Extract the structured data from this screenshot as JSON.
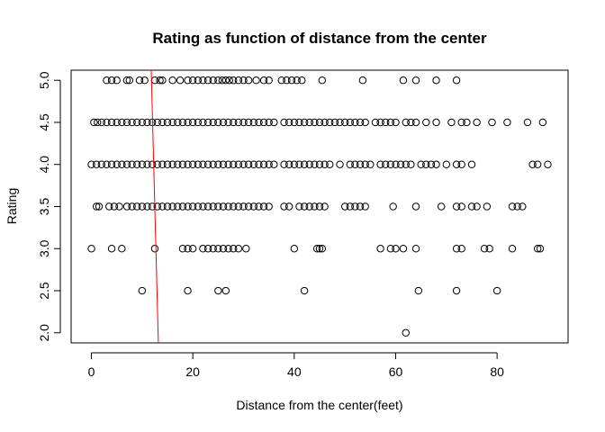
{
  "chart_data": {
    "type": "scatter",
    "title": "Rating as function of distance from the center",
    "xlabel": "Distance from the center(feet)",
    "ylabel": "Rating",
    "xlim": [
      -4,
      94
    ],
    "ylim": [
      1.88,
      5.12
    ],
    "xticks": [
      0,
      20,
      40,
      60,
      80
    ],
    "yticks": [
      2.0,
      2.5,
      3.0,
      3.5,
      4.0,
      4.5,
      5.0
    ],
    "xtick_labels": [
      "0",
      "20",
      "40",
      "60",
      "80"
    ],
    "ytick_labels": [
      "2.0",
      "2.5",
      "3.0",
      "3.5",
      "4.0",
      "4.5",
      "5.0"
    ],
    "grid": false,
    "marker": "open-circle",
    "point_color": "#000000",
    "series": [
      {
        "points": [
          [
            3,
            5.0
          ],
          [
            4,
            5.0
          ],
          [
            5,
            5.0
          ],
          [
            7,
            5.0
          ],
          [
            7.5,
            5.0
          ],
          [
            9.5,
            5.0
          ],
          [
            10.5,
            5.0
          ],
          [
            12.5,
            5.0
          ],
          [
            13.5,
            5.0
          ],
          [
            14,
            5.0
          ],
          [
            16,
            5.0
          ],
          [
            17.5,
            5.0
          ],
          [
            19,
            5.0
          ],
          [
            20,
            5.0
          ],
          [
            21,
            5.0
          ],
          [
            22,
            5.0
          ],
          [
            23,
            5.0
          ],
          [
            24,
            5.0
          ],
          [
            25,
            5.0
          ],
          [
            25.8,
            5.0
          ],
          [
            26.5,
            5.0
          ],
          [
            27.2,
            5.0
          ],
          [
            28,
            5.0
          ],
          [
            29,
            5.0
          ],
          [
            30,
            5.0
          ],
          [
            31,
            5.0
          ],
          [
            32.5,
            5.0
          ],
          [
            34,
            5.0
          ],
          [
            35,
            5.0
          ],
          [
            37.5,
            5.0
          ],
          [
            38.5,
            5.0
          ],
          [
            39.5,
            5.0
          ],
          [
            40.5,
            5.0
          ],
          [
            41.5,
            5.0
          ],
          [
            45.5,
            5.0
          ],
          [
            53.5,
            5.0
          ],
          [
            61.5,
            5.0
          ],
          [
            64,
            5.0
          ],
          [
            68,
            5.0
          ],
          [
            72,
            5.0
          ],
          [
            0.5,
            4.5
          ],
          [
            1.2,
            4.5
          ],
          [
            2,
            4.5
          ],
          [
            3,
            4.5
          ],
          [
            4,
            4.5
          ],
          [
            5,
            4.5
          ],
          [
            6,
            4.5
          ],
          [
            7,
            4.5
          ],
          [
            8,
            4.5
          ],
          [
            9,
            4.5
          ],
          [
            10,
            4.5
          ],
          [
            11,
            4.5
          ],
          [
            12,
            4.5
          ],
          [
            13,
            4.5
          ],
          [
            14,
            4.5
          ],
          [
            15,
            4.5
          ],
          [
            16,
            4.5
          ],
          [
            17,
            4.5
          ],
          [
            18,
            4.5
          ],
          [
            19,
            4.5
          ],
          [
            20,
            4.5
          ],
          [
            21,
            4.5
          ],
          [
            22,
            4.5
          ],
          [
            23,
            4.5
          ],
          [
            24,
            4.5
          ],
          [
            25,
            4.5
          ],
          [
            26,
            4.5
          ],
          [
            27,
            4.5
          ],
          [
            28,
            4.5
          ],
          [
            29,
            4.5
          ],
          [
            30,
            4.5
          ],
          [
            31,
            4.5
          ],
          [
            32,
            4.5
          ],
          [
            33,
            4.5
          ],
          [
            34,
            4.5
          ],
          [
            35,
            4.5
          ],
          [
            36,
            4.5
          ],
          [
            38,
            4.5
          ],
          [
            39,
            4.5
          ],
          [
            40,
            4.5
          ],
          [
            41,
            4.5
          ],
          [
            42,
            4.5
          ],
          [
            43,
            4.5
          ],
          [
            44,
            4.5
          ],
          [
            45,
            4.5
          ],
          [
            46,
            4.5
          ],
          [
            47,
            4.5
          ],
          [
            48,
            4.5
          ],
          [
            49,
            4.5
          ],
          [
            50,
            4.5
          ],
          [
            51,
            4.5
          ],
          [
            52,
            4.5
          ],
          [
            53,
            4.5
          ],
          [
            54,
            4.5
          ],
          [
            56,
            4.5
          ],
          [
            57,
            4.5
          ],
          [
            58,
            4.5
          ],
          [
            59,
            4.5
          ],
          [
            60,
            4.5
          ],
          [
            62,
            4.5
          ],
          [
            63,
            4.5
          ],
          [
            64,
            4.5
          ],
          [
            66,
            4.5
          ],
          [
            68,
            4.5
          ],
          [
            71,
            4.5
          ],
          [
            73,
            4.5
          ],
          [
            74,
            4.5
          ],
          [
            76,
            4.5
          ],
          [
            79,
            4.5
          ],
          [
            82,
            4.5
          ],
          [
            86,
            4.5
          ],
          [
            89,
            4.5
          ],
          [
            0,
            4.0
          ],
          [
            1,
            4.0
          ],
          [
            2,
            4.0
          ],
          [
            3,
            4.0
          ],
          [
            4,
            4.0
          ],
          [
            5,
            4.0
          ],
          [
            6,
            4.0
          ],
          [
            7,
            4.0
          ],
          [
            8,
            4.0
          ],
          [
            9,
            4.0
          ],
          [
            10,
            4.0
          ],
          [
            11,
            4.0
          ],
          [
            12,
            4.0
          ],
          [
            13,
            4.0
          ],
          [
            14,
            4.0
          ],
          [
            15,
            4.0
          ],
          [
            16,
            4.0
          ],
          [
            17,
            4.0
          ],
          [
            18,
            4.0
          ],
          [
            19,
            4.0
          ],
          [
            20,
            4.0
          ],
          [
            21,
            4.0
          ],
          [
            22,
            4.0
          ],
          [
            23,
            4.0
          ],
          [
            24,
            4.0
          ],
          [
            25,
            4.0
          ],
          [
            26,
            4.0
          ],
          [
            27,
            4.0
          ],
          [
            28,
            4.0
          ],
          [
            29,
            4.0
          ],
          [
            30,
            4.0
          ],
          [
            31,
            4.0
          ],
          [
            32,
            4.0
          ],
          [
            33,
            4.0
          ],
          [
            34,
            4.0
          ],
          [
            35,
            4.0
          ],
          [
            36,
            4.0
          ],
          [
            38,
            4.0
          ],
          [
            39,
            4.0
          ],
          [
            40,
            4.0
          ],
          [
            41,
            4.0
          ],
          [
            42,
            4.0
          ],
          [
            43,
            4.0
          ],
          [
            44,
            4.0
          ],
          [
            45,
            4.0
          ],
          [
            46,
            4.0
          ],
          [
            47,
            4.0
          ],
          [
            49,
            4.0
          ],
          [
            51,
            4.0
          ],
          [
            52,
            4.0
          ],
          [
            53,
            4.0
          ],
          [
            54,
            4.0
          ],
          [
            55,
            4.0
          ],
          [
            57,
            4.0
          ],
          [
            58,
            4.0
          ],
          [
            59,
            4.0
          ],
          [
            60,
            4.0
          ],
          [
            61,
            4.0
          ],
          [
            62,
            4.0
          ],
          [
            63,
            4.0
          ],
          [
            65,
            4.0
          ],
          [
            66,
            4.0
          ],
          [
            67,
            4.0
          ],
          [
            68,
            4.0
          ],
          [
            70,
            4.0
          ],
          [
            72,
            4.0
          ],
          [
            73,
            4.0
          ],
          [
            75,
            4.0
          ],
          [
            87,
            4.0
          ],
          [
            88,
            4.0
          ],
          [
            90,
            4.0
          ],
          [
            1,
            3.5
          ],
          [
            1.5,
            3.5
          ],
          [
            3.5,
            3.5
          ],
          [
            4.5,
            3.5
          ],
          [
            5.5,
            3.5
          ],
          [
            7,
            3.5
          ],
          [
            8,
            3.5
          ],
          [
            9,
            3.5
          ],
          [
            10,
            3.5
          ],
          [
            11,
            3.5
          ],
          [
            12,
            3.5
          ],
          [
            13,
            3.5
          ],
          [
            14,
            3.5
          ],
          [
            15,
            3.5
          ],
          [
            16,
            3.5
          ],
          [
            17,
            3.5
          ],
          [
            18,
            3.5
          ],
          [
            19,
            3.5
          ],
          [
            20,
            3.5
          ],
          [
            21,
            3.5
          ],
          [
            22,
            3.5
          ],
          [
            23,
            3.5
          ],
          [
            24,
            3.5
          ],
          [
            25,
            3.5
          ],
          [
            26,
            3.5
          ],
          [
            27,
            3.5
          ],
          [
            28,
            3.5
          ],
          [
            29,
            3.5
          ],
          [
            30,
            3.5
          ],
          [
            31,
            3.5
          ],
          [
            32,
            3.5
          ],
          [
            33,
            3.5
          ],
          [
            34,
            3.5
          ],
          [
            35,
            3.5
          ],
          [
            38,
            3.5
          ],
          [
            39,
            3.5
          ],
          [
            41,
            3.5
          ],
          [
            42,
            3.5
          ],
          [
            43,
            3.5
          ],
          [
            44,
            3.5
          ],
          [
            45,
            3.5
          ],
          [
            46,
            3.5
          ],
          [
            50,
            3.5
          ],
          [
            51,
            3.5
          ],
          [
            52,
            3.5
          ],
          [
            53,
            3.5
          ],
          [
            54,
            3.5
          ],
          [
            59.5,
            3.5
          ],
          [
            64,
            3.5
          ],
          [
            69,
            3.5
          ],
          [
            72,
            3.5
          ],
          [
            73,
            3.5
          ],
          [
            75,
            3.5
          ],
          [
            76,
            3.5
          ],
          [
            78,
            3.5
          ],
          [
            83,
            3.5
          ],
          [
            84,
            3.5
          ],
          [
            85,
            3.5
          ],
          [
            0,
            3.0
          ],
          [
            4,
            3.0
          ],
          [
            6,
            3.0
          ],
          [
            12.5,
            3.0
          ],
          [
            18,
            3.0
          ],
          [
            19,
            3.0
          ],
          [
            20,
            3.0
          ],
          [
            22,
            3.0
          ],
          [
            23,
            3.0
          ],
          [
            24,
            3.0
          ],
          [
            25,
            3.0
          ],
          [
            26,
            3.0
          ],
          [
            27,
            3.0
          ],
          [
            28,
            3.0
          ],
          [
            29,
            3.0
          ],
          [
            30.5,
            3.0
          ],
          [
            40,
            3.0
          ],
          [
            44.5,
            3.0
          ],
          [
            45,
            3.0
          ],
          [
            45.5,
            3.0
          ],
          [
            57,
            3.0
          ],
          [
            59,
            3.0
          ],
          [
            60,
            3.0
          ],
          [
            61.5,
            3.0
          ],
          [
            64,
            3.0
          ],
          [
            72,
            3.0
          ],
          [
            73,
            3.0
          ],
          [
            77.5,
            3.0
          ],
          [
            78.5,
            3.0
          ],
          [
            83,
            3.0
          ],
          [
            88,
            3.0
          ],
          [
            88.5,
            3.0
          ],
          [
            10,
            2.5
          ],
          [
            19,
            2.5
          ],
          [
            25,
            2.5
          ],
          [
            26.5,
            2.5
          ],
          [
            42,
            2.5
          ],
          [
            64.5,
            2.5
          ],
          [
            72,
            2.5
          ],
          [
            80,
            2.5
          ],
          [
            62,
            2.0
          ]
        ]
      }
    ],
    "fit_line": {
      "color": "#ff0000",
      "points": [
        [
          11.8,
          5.12
        ],
        [
          13.2,
          1.88
        ]
      ]
    }
  }
}
